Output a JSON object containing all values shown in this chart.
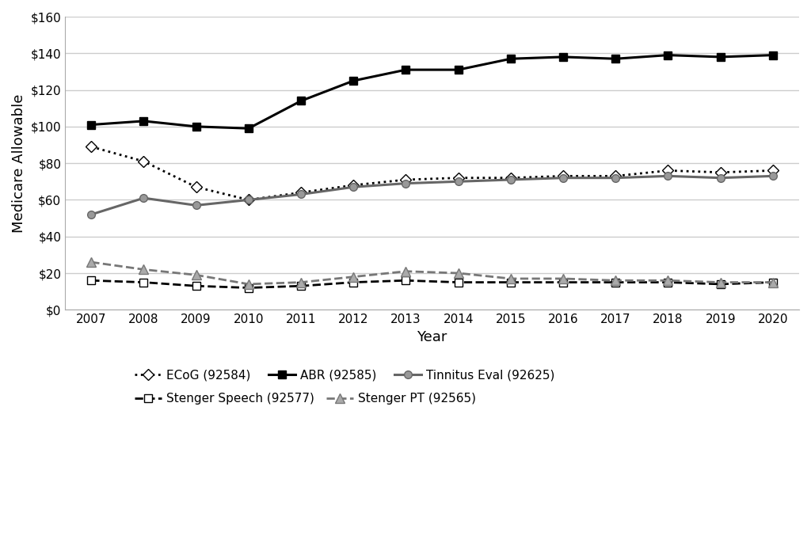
{
  "years": [
    2007,
    2008,
    2009,
    2010,
    2011,
    2012,
    2013,
    2014,
    2015,
    2016,
    2017,
    2018,
    2019,
    2020
  ],
  "ECoG_92584": [
    89,
    81,
    67,
    60,
    64,
    68,
    71,
    72,
    72,
    73,
    73,
    76,
    75,
    76
  ],
  "ABR_92585": [
    101,
    103,
    100,
    99,
    114,
    125,
    131,
    131,
    137,
    138,
    137,
    139,
    138,
    139
  ],
  "Tinnitus_92625": [
    52,
    61,
    57,
    60,
    63,
    67,
    69,
    70,
    71,
    72,
    72,
    73,
    72,
    73
  ],
  "Stenger_Speech_92577": [
    16,
    15,
    13,
    12,
    13,
    15,
    16,
    15,
    15,
    15,
    15,
    15,
    14,
    15
  ],
  "Stenger_PT_92565": [
    26,
    22,
    19,
    14,
    15,
    18,
    21,
    20,
    17,
    17,
    16,
    16,
    15,
    15
  ],
  "ylabel": "Medicare Allowable",
  "xlabel": "Year",
  "ylim": [
    0,
    160
  ],
  "yticks": [
    0,
    20,
    40,
    60,
    80,
    100,
    120,
    140,
    160
  ],
  "bg_color": "#ffffff",
  "plot_bg_color": "#ffffff",
  "grid_color": "#cccccc",
  "legend_labels": [
    "ECoG (92584)",
    "ABR (92585)",
    "Tinnitus Eval (92625)",
    "Stenger Speech (92577)",
    "Stenger PT (92565)"
  ]
}
